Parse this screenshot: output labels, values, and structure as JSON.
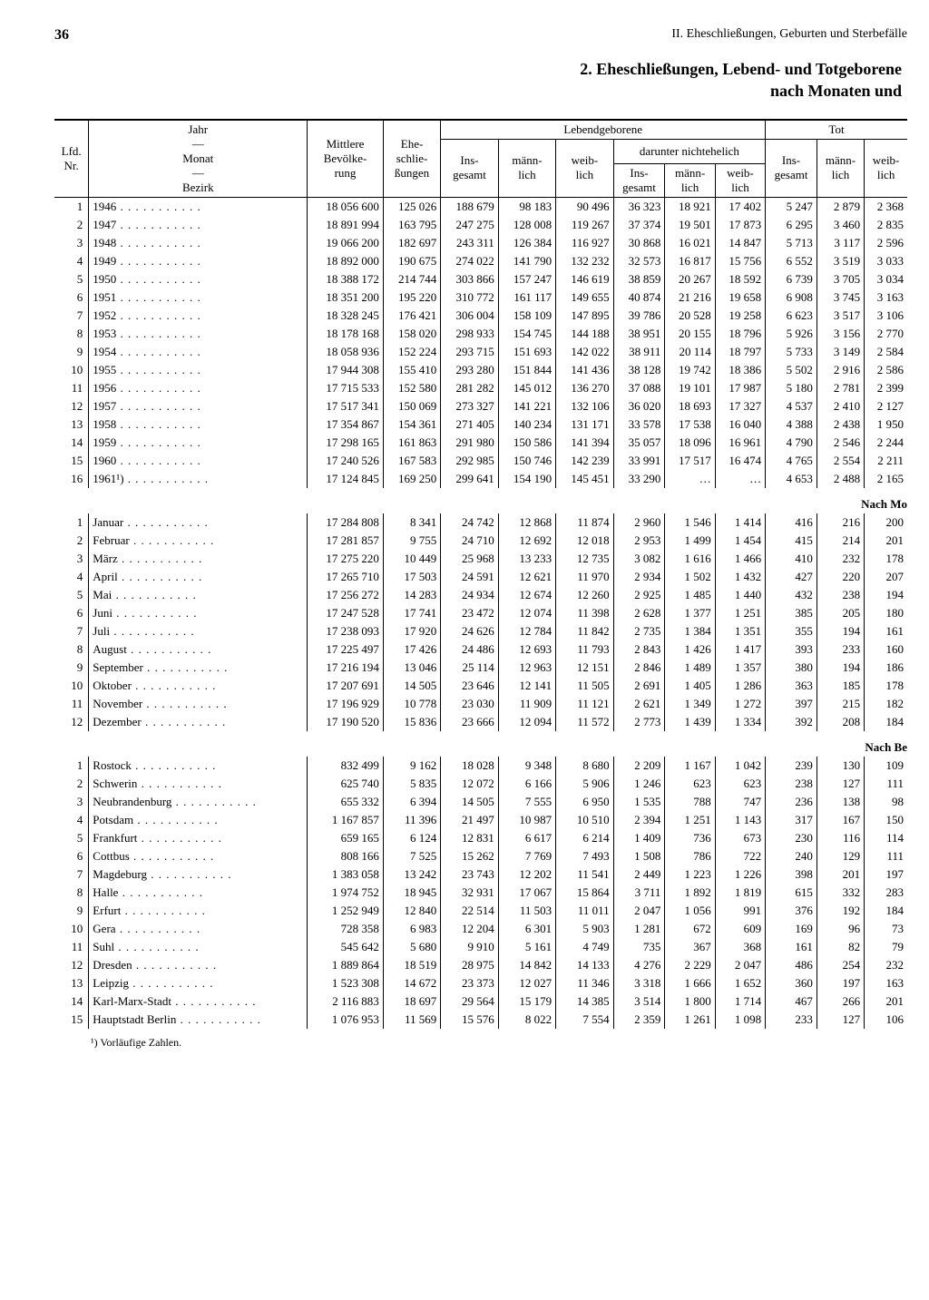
{
  "page_number": "36",
  "running_head": "II. Eheschließungen, Geburten und Sterbefälle",
  "title_line1": "2. Eheschließungen, Lebend- und Totgeborene",
  "title_line2": "nach Monaten und",
  "headers": {
    "lfd": "Lfd.\nNr.",
    "jahr_monat": "Jahr\n—\nMonat\n—\nBezirk",
    "bevoelkerung": "Mittlere\nBevölke-\nrung",
    "ehe": "Ehe-\nschlie-\nßungen",
    "lebend": "Lebendgeborene",
    "insgesamt": "Ins-\ngesamt",
    "mannlich": "männ-\nlich",
    "weiblich": "weib-\nlich",
    "darunter": "darunter nichtehelich",
    "tot": "Tot"
  },
  "section_months": "Nach Mo",
  "section_bezirk": "Nach Be",
  "footnote": "¹) Vorläufige Zahlen.",
  "years": [
    [
      "1",
      "1946",
      "18 056 600",
      "125 026",
      "188 679",
      "98 183",
      "90 496",
      "36 323",
      "18 921",
      "17 402",
      "5 247",
      "2 879",
      "2 368"
    ],
    [
      "2",
      "1947",
      "18 891 994",
      "163 795",
      "247 275",
      "128 008",
      "119 267",
      "37 374",
      "19 501",
      "17 873",
      "6 295",
      "3 460",
      "2 835"
    ],
    [
      "3",
      "1948",
      "19 066 200",
      "182 697",
      "243 311",
      "126 384",
      "116 927",
      "30 868",
      "16 021",
      "14 847",
      "5 713",
      "3 117",
      "2 596"
    ],
    [
      "4",
      "1949",
      "18 892 000",
      "190 675",
      "274 022",
      "141 790",
      "132 232",
      "32 573",
      "16 817",
      "15 756",
      "6 552",
      "3 519",
      "3 033"
    ],
    [
      "5",
      "1950",
      "18 388 172",
      "214 744",
      "303 866",
      "157 247",
      "146 619",
      "38 859",
      "20 267",
      "18 592",
      "6 739",
      "3 705",
      "3 034"
    ],
    [
      "6",
      "1951",
      "18 351 200",
      "195 220",
      "310 772",
      "161 117",
      "149 655",
      "40 874",
      "21 216",
      "19 658",
      "6 908",
      "3 745",
      "3 163"
    ],
    [
      "7",
      "1952",
      "18 328 245",
      "176 421",
      "306 004",
      "158 109",
      "147 895",
      "39 786",
      "20 528",
      "19 258",
      "6 623",
      "3 517",
      "3 106"
    ],
    [
      "8",
      "1953",
      "18 178 168",
      "158 020",
      "298 933",
      "154 745",
      "144 188",
      "38 951",
      "20 155",
      "18 796",
      "5 926",
      "3 156",
      "2 770"
    ],
    [
      "9",
      "1954",
      "18 058 936",
      "152 224",
      "293 715",
      "151 693",
      "142 022",
      "38 911",
      "20 114",
      "18 797",
      "5 733",
      "3 149",
      "2 584"
    ],
    [
      "10",
      "1955",
      "17 944 308",
      "155 410",
      "293 280",
      "151 844",
      "141 436",
      "38 128",
      "19 742",
      "18 386",
      "5 502",
      "2 916",
      "2 586"
    ],
    [
      "11",
      "1956",
      "17 715 533",
      "152 580",
      "281 282",
      "145 012",
      "136 270",
      "37 088",
      "19 101",
      "17 987",
      "5 180",
      "2 781",
      "2 399"
    ],
    [
      "12",
      "1957",
      "17 517 341",
      "150 069",
      "273 327",
      "141 221",
      "132 106",
      "36 020",
      "18 693",
      "17 327",
      "4 537",
      "2 410",
      "2 127"
    ],
    [
      "13",
      "1958",
      "17 354 867",
      "154 361",
      "271 405",
      "140 234",
      "131 171",
      "33 578",
      "17 538",
      "16 040",
      "4 388",
      "2 438",
      "1 950"
    ],
    [
      "14",
      "1959",
      "17 298 165",
      "161 863",
      "291 980",
      "150 586",
      "141 394",
      "35 057",
      "18 096",
      "16 961",
      "4 790",
      "2 546",
      "2 244"
    ],
    [
      "15",
      "1960",
      "17 240 526",
      "167 583",
      "292 985",
      "150 746",
      "142 239",
      "33 991",
      "17 517",
      "16 474",
      "4 765",
      "2 554",
      "2 211"
    ],
    [
      "16",
      "1961¹)",
      "17 124 845",
      "169 250",
      "299 641",
      "154 190",
      "145 451",
      "33 290",
      "…",
      "…",
      "4 653",
      "2 488",
      "2 165"
    ]
  ],
  "months": [
    [
      "1",
      "Januar",
      "17 284 808",
      "8 341",
      "24 742",
      "12 868",
      "11 874",
      "2 960",
      "1 546",
      "1 414",
      "416",
      "216",
      "200"
    ],
    [
      "2",
      "Februar",
      "17 281 857",
      "9 755",
      "24 710",
      "12 692",
      "12 018",
      "2 953",
      "1 499",
      "1 454",
      "415",
      "214",
      "201"
    ],
    [
      "3",
      "März",
      "17 275 220",
      "10 449",
      "25 968",
      "13 233",
      "12 735",
      "3 082",
      "1 616",
      "1 466",
      "410",
      "232",
      "178"
    ],
    [
      "4",
      "April",
      "17 265 710",
      "17 503",
      "24 591",
      "12 621",
      "11 970",
      "2 934",
      "1 502",
      "1 432",
      "427",
      "220",
      "207"
    ],
    [
      "5",
      "Mai",
      "17 256 272",
      "14 283",
      "24 934",
      "12 674",
      "12 260",
      "2 925",
      "1 485",
      "1 440",
      "432",
      "238",
      "194"
    ],
    [
      "6",
      "Juni",
      "17 247 528",
      "17 741",
      "23 472",
      "12 074",
      "11 398",
      "2 628",
      "1 377",
      "1 251",
      "385",
      "205",
      "180"
    ],
    [
      "7",
      "Juli",
      "17 238 093",
      "17 920",
      "24 626",
      "12 784",
      "11 842",
      "2 735",
      "1 384",
      "1 351",
      "355",
      "194",
      "161"
    ],
    [
      "8",
      "August",
      "17 225 497",
      "17 426",
      "24 486",
      "12 693",
      "11 793",
      "2 843",
      "1 426",
      "1 417",
      "393",
      "233",
      "160"
    ],
    [
      "9",
      "September",
      "17 216 194",
      "13 046",
      "25 114",
      "12 963",
      "12 151",
      "2 846",
      "1 489",
      "1 357",
      "380",
      "194",
      "186"
    ],
    [
      "10",
      "Oktober",
      "17 207 691",
      "14 505",
      "23 646",
      "12 141",
      "11 505",
      "2 691",
      "1 405",
      "1 286",
      "363",
      "185",
      "178"
    ],
    [
      "11",
      "November",
      "17 196 929",
      "10 778",
      "23 030",
      "11 909",
      "11 121",
      "2 621",
      "1 349",
      "1 272",
      "397",
      "215",
      "182"
    ],
    [
      "12",
      "Dezember",
      "17 190 520",
      "15 836",
      "23 666",
      "12 094",
      "11 572",
      "2 773",
      "1 439",
      "1 334",
      "392",
      "208",
      "184"
    ]
  ],
  "bezirke": [
    [
      "1",
      "Rostock",
      "832 499",
      "9 162",
      "18 028",
      "9 348",
      "8 680",
      "2 209",
      "1 167",
      "1 042",
      "239",
      "130",
      "109"
    ],
    [
      "2",
      "Schwerin",
      "625 740",
      "5 835",
      "12 072",
      "6 166",
      "5 906",
      "1 246",
      "623",
      "623",
      "238",
      "127",
      "111"
    ],
    [
      "3",
      "Neubrandenburg",
      "655 332",
      "6 394",
      "14 505",
      "7 555",
      "6 950",
      "1 535",
      "788",
      "747",
      "236",
      "138",
      "98"
    ],
    [
      "4",
      "Potsdam",
      "1 167 857",
      "11 396",
      "21 497",
      "10 987",
      "10 510",
      "2 394",
      "1 251",
      "1 143",
      "317",
      "167",
      "150"
    ],
    [
      "5",
      "Frankfurt",
      "659 165",
      "6 124",
      "12 831",
      "6 617",
      "6 214",
      "1 409",
      "736",
      "673",
      "230",
      "116",
      "114"
    ],
    [
      "6",
      "Cottbus",
      "808 166",
      "7 525",
      "15 262",
      "7 769",
      "7 493",
      "1 508",
      "786",
      "722",
      "240",
      "129",
      "111"
    ],
    [
      "7",
      "Magdeburg",
      "1 383 058",
      "13 242",
      "23 743",
      "12 202",
      "11 541",
      "2 449",
      "1 223",
      "1 226",
      "398",
      "201",
      "197"
    ],
    [
      "8",
      "Halle",
      "1 974 752",
      "18 945",
      "32 931",
      "17 067",
      "15 864",
      "3 711",
      "1 892",
      "1 819",
      "615",
      "332",
      "283"
    ],
    [
      "9",
      "Erfurt",
      "1 252 949",
      "12 840",
      "22 514",
      "11 503",
      "11 011",
      "2 047",
      "1 056",
      "991",
      "376",
      "192",
      "184"
    ],
    [
      "10",
      "Gera",
      "728 358",
      "6 983",
      "12 204",
      "6 301",
      "5 903",
      "1 281",
      "672",
      "609",
      "169",
      "96",
      "73"
    ],
    [
      "11",
      "Suhl",
      "545 642",
      "5 680",
      "9 910",
      "5 161",
      "4 749",
      "735",
      "367",
      "368",
      "161",
      "82",
      "79"
    ],
    [
      "12",
      "Dresden",
      "1 889 864",
      "18 519",
      "28 975",
      "14 842",
      "14 133",
      "4 276",
      "2 229",
      "2 047",
      "486",
      "254",
      "232"
    ],
    [
      "13",
      "Leipzig",
      "1 523 308",
      "14 672",
      "23 373",
      "12 027",
      "11 346",
      "3 318",
      "1 666",
      "1 652",
      "360",
      "197",
      "163"
    ],
    [
      "14",
      "Karl-Marx-Stadt",
      "2 116 883",
      "18 697",
      "29 564",
      "15 179",
      "14 385",
      "3 514",
      "1 800",
      "1 714",
      "467",
      "266",
      "201"
    ],
    [
      "15",
      "Hauptstadt Berlin",
      "1 076 953",
      "11 569",
      "15 576",
      "8 022",
      "7 554",
      "2 359",
      "1 261",
      "1 098",
      "233",
      "127",
      "106"
    ]
  ]
}
